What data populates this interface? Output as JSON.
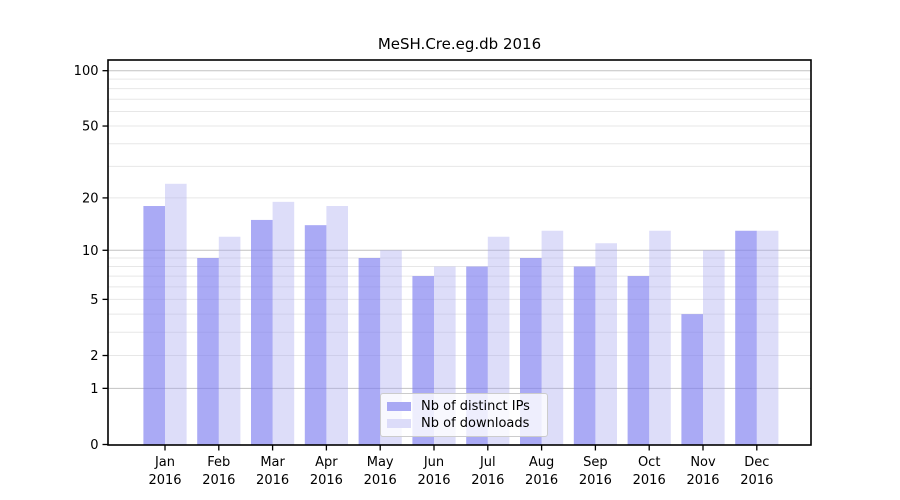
{
  "chart_data": {
    "type": "bar",
    "title": "MeSH.Cre.eg.db 2016",
    "categories": [
      "Jan\n2016",
      "Feb\n2016",
      "Mar\n2016",
      "Apr\n2016",
      "May\n2016",
      "Jun\n2016",
      "Jul\n2016",
      "Aug\n2016",
      "Sep\n2016",
      "Oct\n2016",
      "Nov\n2016",
      "Dec\n2016"
    ],
    "series": [
      {
        "name": "Nb of distinct IPs",
        "color": "#a9a9f4",
        "fill_rgba": "rgba(128,128,240,0.667)",
        "values": [
          18,
          9,
          15,
          14,
          9,
          7,
          8,
          9,
          8,
          7,
          4,
          13
        ]
      },
      {
        "name": "Nb of downloads",
        "color": "#dcdcf9",
        "fill_rgba": "rgba(170,170,240,0.4)",
        "values": [
          24,
          12,
          19,
          18,
          10,
          8,
          12,
          13,
          11,
          13,
          10,
          13
        ]
      }
    ],
    "xlabel": "",
    "ylabel": "",
    "yticks": [
      0,
      1,
      2,
      5,
      10,
      20,
      50,
      100
    ],
    "ylim": [
      0,
      115
    ],
    "scale": "log10(1+y)",
    "grid": "horizontal, minor+major",
    "legend_position": "inside lower-center"
  }
}
